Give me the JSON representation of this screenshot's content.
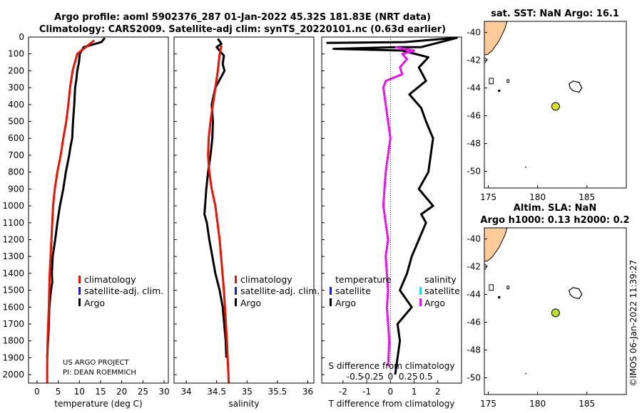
{
  "header": {
    "title_line1": "Argo profile: aoml 5902376_287 01-Jan-2022 45.32S 181.83E (NRT data)",
    "title_line2": "Climatology: CARS2009. Satellite-adj clim: synTS_20220101.nc (0.63d earlier)"
  },
  "colors": {
    "argo": "#000000",
    "climatology": "#ee1100",
    "satellite": "#1a1aee",
    "salinity_diff": "#ee11ee",
    "satellite_salinity": "#22dddd",
    "land": "#ffcc99",
    "argo_marker_sst": "#dddd22",
    "argo_marker_sla": "#bbdd22"
  },
  "chart_data": [
    {
      "type": "line",
      "id": "temperature",
      "xlabel": "temperature (deg C)",
      "ylabel": "",
      "xlim": [
        -2,
        31
      ],
      "ylim": [
        2050,
        0
      ],
      "xticks": [
        "0",
        "5",
        "10",
        "15",
        "20",
        "25",
        "30"
      ],
      "xtick_values": [
        0,
        5,
        10,
        15,
        20,
        25,
        30
      ],
      "yticks": [
        "0",
        "100",
        "200",
        "300",
        "400",
        "500",
        "600",
        "700",
        "800",
        "900",
        "1000",
        "1100",
        "1200",
        "1300",
        "1400",
        "1500",
        "1600",
        "1700",
        "1800",
        "1900",
        "2000"
      ],
      "ytick_values": [
        0,
        100,
        200,
        300,
        400,
        500,
        600,
        700,
        800,
        900,
        1000,
        1100,
        1200,
        1300,
        1400,
        1500,
        1600,
        1700,
        1800,
        1900,
        2000
      ],
      "legend": [
        "climatology",
        "satellite-adj. clim.",
        "Argo"
      ],
      "annotation_line1": "US ARGO PROJECT",
      "annotation_line2": "PI: DEAN ROEMMICH",
      "series": [
        {
          "name": "Argo",
          "color": "#000000",
          "x": [
            16.0,
            15.2,
            11.0,
            10.1,
            9.9,
            9.5,
            9.3,
            9.0,
            8.8,
            8.5,
            8.3,
            7.9,
            7.6,
            6.8,
            6.2,
            5.4,
            4.8,
            4.3,
            3.7,
            3.5,
            3.6,
            3.3,
            2.9,
            2.8,
            2.6,
            2.4
          ],
          "y": [
            5,
            30,
            60,
            100,
            150,
            200,
            250,
            300,
            400,
            500,
            600,
            650,
            700,
            800,
            900,
            1000,
            1100,
            1200,
            1300,
            1400,
            1450,
            1500,
            1600,
            1700,
            1800,
            1900
          ]
        },
        {
          "name": "climatology",
          "color": "#ee1100",
          "x": [
            13.5,
            9.5,
            8.4,
            7.8,
            7.4,
            6.9,
            6.2,
            5.6,
            4.8,
            4.2,
            3.8,
            3.4,
            3.0,
            2.8,
            2.5,
            2.4,
            2.4
          ],
          "y": [
            20,
            100,
            200,
            300,
            400,
            500,
            600,
            700,
            800,
            900,
            1000,
            1200,
            1400,
            1600,
            1800,
            1950,
            2050
          ]
        }
      ]
    },
    {
      "type": "line",
      "id": "salinity",
      "xlabel": "salinity",
      "xlim": [
        33.8,
        36.1
      ],
      "ylim": [
        2050,
        0
      ],
      "xticks": [
        "34",
        "34.5",
        "35",
        "35.5",
        "36"
      ],
      "xtick_values": [
        34,
        34.5,
        35,
        35.5,
        36
      ],
      "legend": [
        "climatology",
        "satellite-adj. clim.",
        "Argo"
      ],
      "series": [
        {
          "name": "Argo",
          "color": "#000000",
          "x": [
            34.52,
            34.58,
            34.5,
            34.57,
            34.62,
            34.6,
            34.63,
            34.57,
            34.48,
            34.42,
            34.44,
            34.43,
            34.4,
            34.36,
            34.33,
            34.31,
            34.3,
            34.34,
            34.38,
            34.43,
            34.48,
            34.55,
            34.6,
            34.65,
            34.66
          ],
          "y": [
            10,
            40,
            60,
            90,
            110,
            160,
            200,
            240,
            300,
            400,
            500,
            600,
            700,
            800,
            900,
            1000,
            1050,
            1100,
            1200,
            1300,
            1400,
            1500,
            1600,
            1800,
            1900
          ]
        },
        {
          "name": "climatology",
          "color": "#ee1100",
          "x": [
            34.58,
            34.55,
            34.52,
            34.48,
            34.44,
            34.4,
            34.37,
            34.36,
            34.38,
            34.42,
            34.48,
            34.55,
            34.62,
            34.67,
            34.7
          ],
          "y": [
            50,
            100,
            200,
            300,
            400,
            500,
            600,
            700,
            800,
            900,
            1000,
            1200,
            1500,
            1800,
            2050
          ]
        }
      ]
    },
    {
      "type": "line",
      "id": "difference",
      "xlabel": "T difference from climatology",
      "xlabel2": "S difference from climatology",
      "xlim": [
        -2.9,
        3.0
      ],
      "ylim": [
        2050,
        0
      ],
      "xticks": [
        "-2",
        "-1",
        "0",
        "1",
        "2"
      ],
      "xtick_values": [
        -2,
        -1,
        0,
        1,
        2
      ],
      "s_xticks": [
        "-0.5",
        "-0.25",
        "0",
        "0.25",
        "0.5"
      ],
      "s_xtick_values": [
        -1.5,
        -0.75,
        0,
        0.75,
        1.5
      ],
      "legend_left_title": "temperature",
      "legend_right_title": "salinity",
      "legend_left": [
        "satellite",
        "Argo"
      ],
      "legend_right": [
        "satellite",
        "Argo"
      ],
      "series": [
        {
          "name": "T Argo",
          "color": "#000000",
          "x": [
            -2.7,
            0.6,
            2.3,
            2.8,
            1.3,
            0.3,
            -2.4,
            0.5,
            1.6,
            1.2,
            1.5,
            0.8,
            1.3,
            1.5,
            1.8,
            1.7,
            1.6,
            1.2,
            1.8,
            1.3,
            1.5,
            1.2,
            0.9,
            0.7,
            0.4,
            0.9,
            0.3,
            0.4,
            0.3,
            0.2
          ],
          "y": [
            35,
            30,
            10,
            5,
            60,
            60,
            70,
            80,
            120,
            180,
            260,
            340,
            420,
            500,
            600,
            700,
            800,
            900,
            1000,
            1050,
            1100,
            1200,
            1300,
            1400,
            1500,
            1600,
            1700,
            1800,
            1900,
            2000
          ]
        },
        {
          "name": "S Argo",
          "color": "#ee11ee",
          "x": [
            0.2,
            1.0,
            0.5,
            0.7,
            0.4,
            0.5,
            -0.2,
            -0.3,
            -0.2,
            -0.1,
            0.0,
            -0.1,
            -0.2,
            -0.25,
            -0.3,
            -0.2,
            -0.1,
            -0.2,
            -0.15,
            -0.1,
            -0.15,
            -0.05,
            -0.1
          ],
          "y": [
            60,
            80,
            100,
            130,
            180,
            220,
            260,
            300,
            400,
            500,
            600,
            700,
            800,
            900,
            1000,
            1100,
            1200,
            1300,
            1400,
            1500,
            1600,
            1800,
            1950
          ]
        }
      ]
    },
    {
      "type": "scatter",
      "id": "sst_map",
      "title": "sat. SST: NaN Argo: 16.1",
      "xlim": [
        174.6,
        189
      ],
      "ylim": [
        -51.2,
        -39.2
      ],
      "xticks": [
        "175",
        "180",
        "185"
      ],
      "xtick_values": [
        175,
        180,
        185
      ],
      "yticks": [
        "-40",
        "-42",
        "-44",
        "-46",
        "-48",
        "-50"
      ],
      "ytick_values": [
        -40,
        -42,
        -44,
        -46,
        -48,
        -50
      ],
      "argo_position": [
        181.83,
        -45.32
      ]
    },
    {
      "type": "scatter",
      "id": "sla_map",
      "title_line1": "Altim. SLA: NaN",
      "title_line2": "Argo h1000: 0.13 h2000: 0.2",
      "xlim": [
        174.6,
        189
      ],
      "ylim": [
        -51.2,
        -39.2
      ],
      "xticks": [
        "175",
        "180",
        "185"
      ],
      "xtick_values": [
        175,
        180,
        185
      ],
      "yticks": [
        "-40",
        "-42",
        "-44",
        "-46",
        "-48",
        "-50"
      ],
      "ytick_values": [
        -40,
        -42,
        -44,
        -46,
        -48,
        -50
      ],
      "argo_position": [
        181.83,
        -45.32
      ]
    }
  ],
  "footer": {
    "imos_stamp": "©IMOS 06-Jan-2022 11:39:27"
  }
}
